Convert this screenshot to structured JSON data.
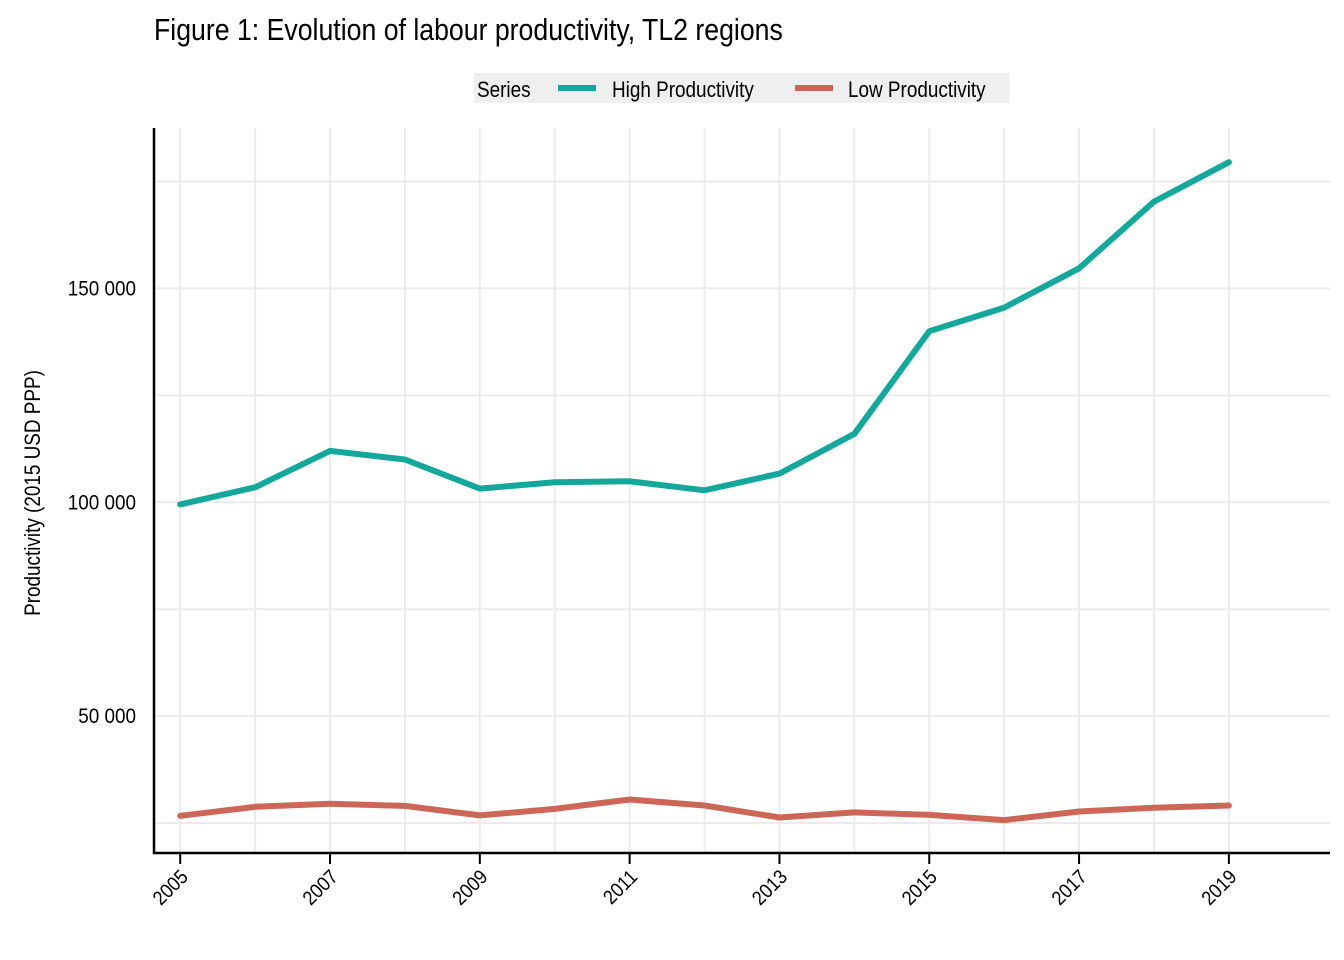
{
  "chart_data": {
    "type": "line",
    "title": "Figure 1: Evolution of labour productivity, TL2 regions",
    "xlabel": "",
    "ylabel": "Productivity (2015 USD PPP)",
    "x": [
      2005,
      2006,
      2007,
      2008,
      2009,
      2010,
      2011,
      2012,
      2013,
      2014,
      2015,
      2016,
      2017,
      2018,
      2019
    ],
    "xlim": [
      2004.65,
      2020.35
    ],
    "x_ticks": [
      2005,
      2007,
      2009,
      2011,
      2013,
      2015,
      2017,
      2019
    ],
    "x_tick_labels": [
      "2005",
      "2007",
      "2009",
      "2011",
      "2013",
      "2015",
      "2017",
      "2019"
    ],
    "ylim": [
      18000,
      187500
    ],
    "y_ticks": [
      50000,
      100000,
      150000
    ],
    "y_tick_labels": [
      "50 000",
      "100 000",
      "150 000"
    ],
    "y_minor_grid": [
      25000,
      75000,
      125000,
      175000
    ],
    "grid": true,
    "legend": {
      "title": "Series",
      "position": "top"
    },
    "series": [
      {
        "name": "High Productivity",
        "color": "#14a89c",
        "values": [
          99500,
          103500,
          112000,
          110000,
          103200,
          104700,
          104900,
          102800,
          106700,
          116000,
          140000,
          145500,
          154700,
          170300,
          179500
        ]
      },
      {
        "name": "Low Productivity",
        "color": "#cc6656",
        "values": [
          26700,
          28800,
          29500,
          29000,
          26800,
          28300,
          30500,
          29100,
          26300,
          27500,
          26900,
          25700,
          27700,
          28600,
          29100
        ]
      }
    ]
  }
}
